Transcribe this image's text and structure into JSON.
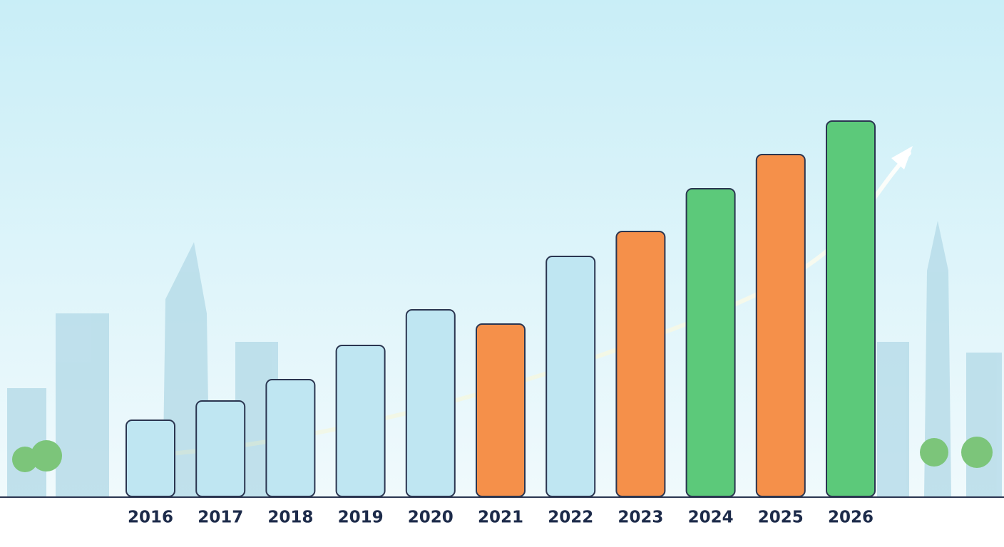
{
  "chart_data": {
    "type": "bar",
    "categories": [
      "2016",
      "2017",
      "2018",
      "2019",
      "2020",
      "2021",
      "2022",
      "2023",
      "2024",
      "2025",
      "2026"
    ],
    "values": [
      107,
      134,
      164,
      212,
      262,
      242,
      337,
      372,
      432,
      480,
      527
    ],
    "colors": [
      "#bfe6f2",
      "#bfe6f2",
      "#bfe6f2",
      "#bfe6f2",
      "#bfe6f2",
      "#f5904a",
      "#bfe6f2",
      "#f5904a",
      "#5cc97a",
      "#f5904a",
      "#5cc97a"
    ],
    "ylim": [
      0,
      560
    ]
  }
}
